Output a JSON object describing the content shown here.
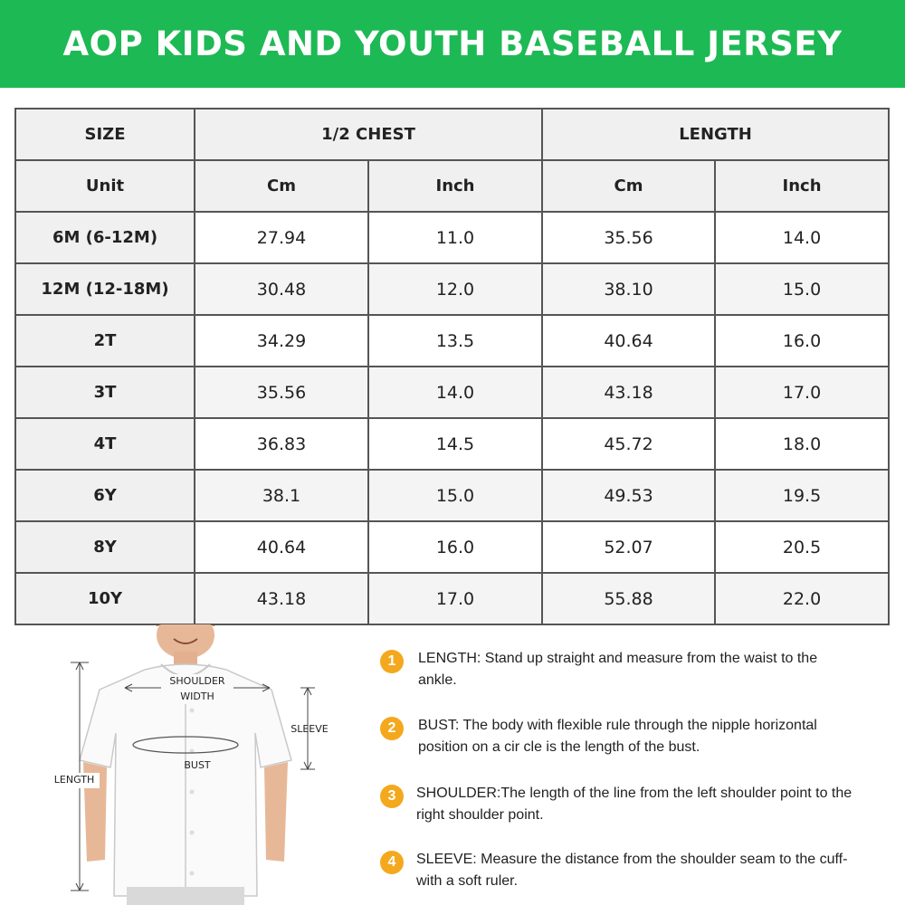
{
  "banner": {
    "title": "AOP KIDS AND YOUTH BASEBALL JERSEY"
  },
  "table": {
    "size_header": "SIZE",
    "chest_header": "1/2 CHEST",
    "length_header": "LENGTH",
    "unit_label": "Unit",
    "units": [
      "Cm",
      "Inch",
      "Cm",
      "Inch"
    ],
    "rows": [
      {
        "size": "6M (6-12M)",
        "chest_cm": "27.94",
        "chest_in": "11.0",
        "length_cm": "35.56",
        "length_in": "14.0"
      },
      {
        "size": "12M (12-18M)",
        "chest_cm": "30.48",
        "chest_in": "12.0",
        "length_cm": "38.10",
        "length_in": "15.0"
      },
      {
        "size": "2T",
        "chest_cm": "34.29",
        "chest_in": "13.5",
        "length_cm": "40.64",
        "length_in": "16.0"
      },
      {
        "size": "3T",
        "chest_cm": "35.56",
        "chest_in": "14.0",
        "length_cm": "43.18",
        "length_in": "17.0"
      },
      {
        "size": "4T",
        "chest_cm": "36.83",
        "chest_in": "14.5",
        "length_cm": "45.72",
        "length_in": "18.0"
      },
      {
        "size": "6Y",
        "chest_cm": "38.1",
        "chest_in": "15.0",
        "length_cm": "49.53",
        "length_in": "19.5"
      },
      {
        "size": "8Y",
        "chest_cm": "40.64",
        "chest_in": "16.0",
        "length_cm": "52.07",
        "length_in": "20.5"
      },
      {
        "size": "10Y",
        "chest_cm": "43.18",
        "chest_in": "17.0",
        "length_cm": "55.88",
        "length_in": "22.0"
      }
    ]
  },
  "diagram": {
    "shoulder_label_1": "SHOULDER",
    "shoulder_label_2": "WIDTH",
    "sleeve_label": "SLEEVE",
    "bust_label": "BUST",
    "length_label": "LENGTH"
  },
  "instructions": [
    {
      "num": "1",
      "text": "LENGTH: Stand up straight and measure from the waist to the ankle."
    },
    {
      "num": "2",
      "text": "BUST:  The body with flexible rule through the nipple horizontal position on a cir cle is the length of the bust."
    },
    {
      "num": "3",
      "text": "SHOULDER:The length of the line from the left shoulder point to the right shoulder point."
    },
    {
      "num": "4",
      "text": "SLEEVE: Measure the distance from the shoulder seam to the cuff- with a soft ruler."
    }
  ],
  "colors": {
    "banner": "#1db954",
    "badge": "#f4a81d"
  }
}
